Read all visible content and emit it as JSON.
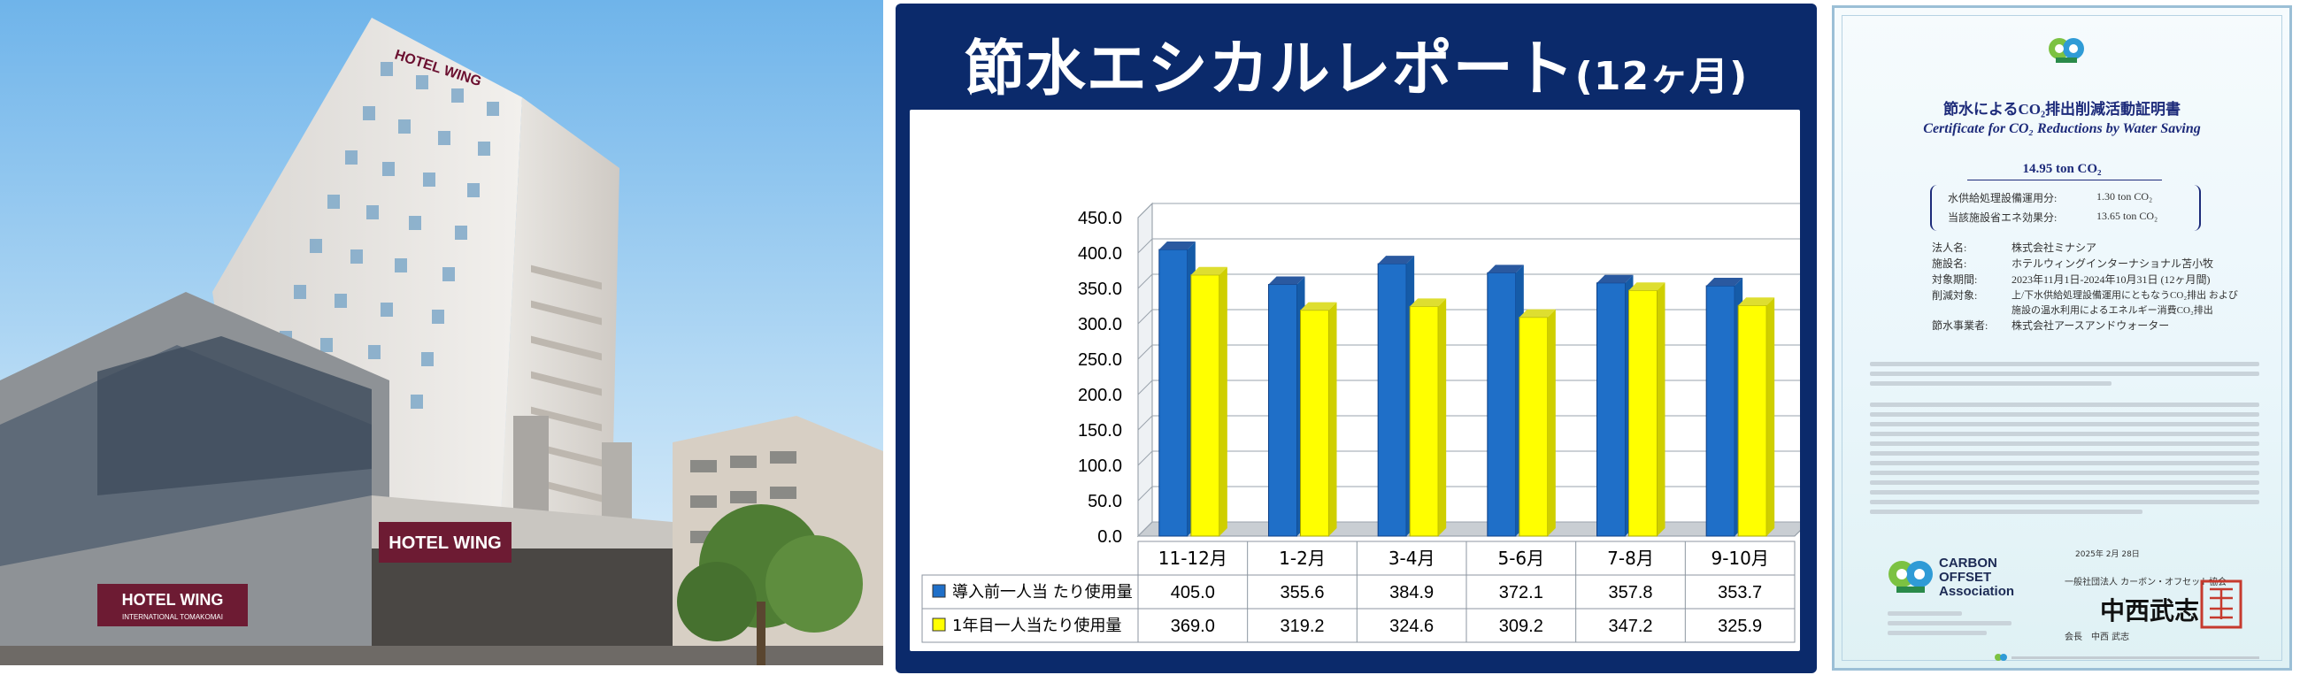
{
  "report": {
    "title": "節水エシカルレポート",
    "title_suffix": "(12ヶ月)"
  },
  "chart_data": {
    "type": "bar",
    "title": "節水エシカルレポート(12ヶ月)",
    "categories": [
      "11-12月",
      "1-2月",
      "3-4月",
      "5-6月",
      "7-8月",
      "9-10月"
    ],
    "series": [
      {
        "name": "導入前一人当 たり使用量",
        "values": [
          405.0,
          355.6,
          384.9,
          372.1,
          357.8,
          353.7
        ],
        "color": "#1f6fc8"
      },
      {
        "name": "1年目一人当たり使用量",
        "values": [
          369.0,
          319.2,
          324.6,
          309.2,
          347.2,
          325.9
        ],
        "color": "#ffff00"
      }
    ],
    "yticks": [
      "450.0",
      "400.0",
      "350.0",
      "300.0",
      "250.0",
      "200.0",
      "150.0",
      "100.0",
      "50.0",
      "0.0"
    ],
    "ylim": [
      0,
      450
    ],
    "grid": true,
    "legend": "data-table"
  },
  "hotel_signs": {
    "main": "HOTEL WING",
    "lower": "HOTEL WING",
    "lower_sub": "INTERNATIONAL TOMAKOMAI"
  },
  "certificate": {
    "title_jp": "節水によるCO₂排出削減活動証明書",
    "title_en": "Certificate for CO₂ Reductions by Water Saving",
    "total": "14.95 ton CO₂",
    "breakdown": [
      {
        "label": "水供給処理設備運用分:",
        "value": "1.30 ton CO₂"
      },
      {
        "label": "当該施設省エネ効果分:",
        "value": "13.65 ton CO₂"
      }
    ],
    "fields": [
      {
        "label": "法人名:",
        "value": "株式会社ミナシア"
      },
      {
        "label": "施設名:",
        "value": "ホテルウィングインターナショナル苫小牧"
      },
      {
        "label": "対象期間:",
        "value": "2023年11月1日-2024年10月31日 (12ヶ月間)"
      },
      {
        "label": "削減対象:",
        "value": "上/下水供給処理設備運用にともなうCO₂排出 および"
      },
      {
        "label": "",
        "value": "施設の温水利用によるエネルギー消費CO₂排出"
      },
      {
        "label": "節水事業者:",
        "value": "株式会社アースアンドウォーター"
      }
    ],
    "date": "2025年 2月 28日",
    "issuer": "一般社団法人 カーボン・オフセット協会",
    "signer": "会長　中西 武志",
    "signature": "中西武志",
    "logo_text": "CARBON OFFSET Association"
  }
}
